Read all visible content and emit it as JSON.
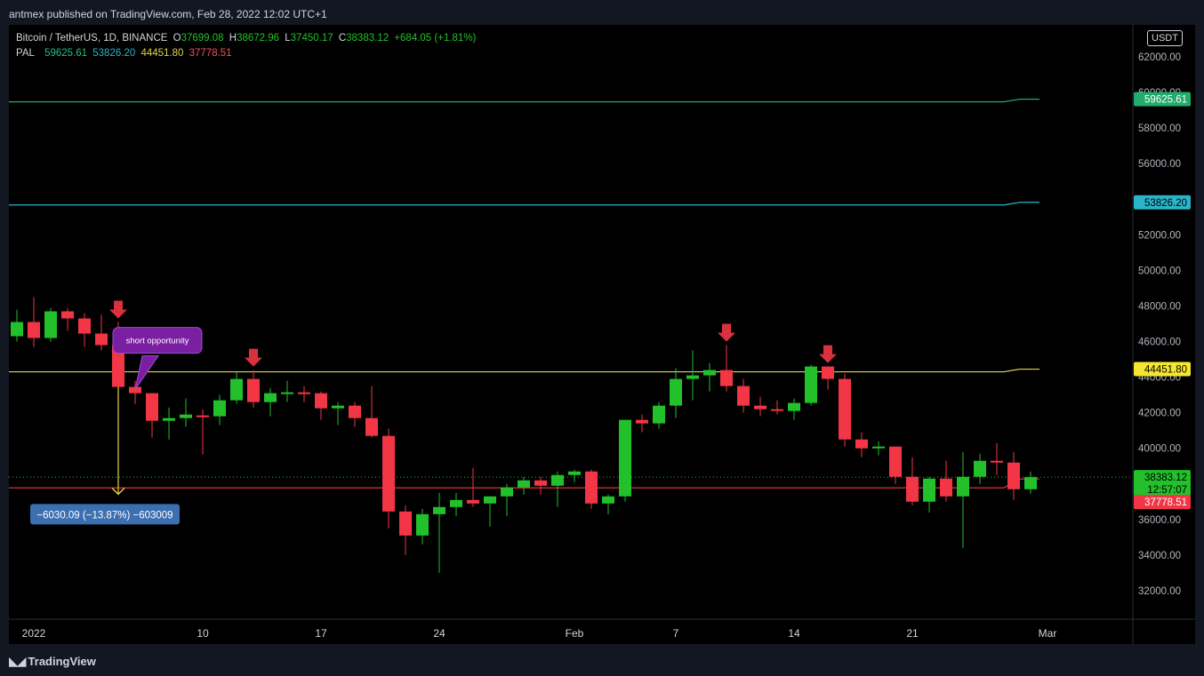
{
  "header": {
    "published": "antmex published on TradingView.com, Feb 28, 2022 12:02 UTC+1"
  },
  "legend": {
    "symbol": "Bitcoin / TetherUS, 1D, BINANCE",
    "open_label": "O",
    "open": "37699.08",
    "high_label": "H",
    "high": "38672.96",
    "low_label": "L",
    "low": "37450.17",
    "close_label": "C",
    "close": "38383.12",
    "change": "+684.05 (+1.81%)",
    "indicator": "PAL",
    "pal_values": [
      "59625.61",
      "53826.20",
      "44451.80",
      "37778.51"
    ]
  },
  "colors": {
    "up": "#22c02a",
    "down": "#f23645",
    "pal1": "#22ab6b",
    "pal2": "#2ab4c9",
    "pal3": "#e0d44a",
    "pal4": "#f23645",
    "annotation": "#7b1fa2",
    "measure": "#3c6fb0",
    "arrow": "#e0d44a"
  },
  "currency_badge": "USDT",
  "footer": {
    "brand": "TradingView",
    "logo_icon": "tradingview-logo-icon"
  },
  "chart_data": {
    "type": "candlestick",
    "y_axis_ticks": [
      32000,
      34000,
      36000,
      38000,
      40000,
      42000,
      44000,
      46000,
      48000,
      50000,
      52000,
      54000,
      56000,
      58000,
      60000,
      62000
    ],
    "y_axis_tick_labels": [
      "32000.00",
      "34000.00",
      "36000.00",
      "38000.00",
      "40000.00",
      "42000.00",
      "44000.00",
      "46000.00",
      "48000.00",
      "50000.00",
      "52000.00",
      "54000.00",
      "56000.00",
      "58000.00",
      "60000.00",
      "62000.00"
    ],
    "ylim": [
      30400,
      63800
    ],
    "x_axis_labels": [
      {
        "date": "2021-12-31",
        "label": "2022"
      },
      {
        "date": "2022-01-10",
        "label": "10"
      },
      {
        "date": "2022-01-17",
        "label": "17"
      },
      {
        "date": "2022-01-24",
        "label": "24"
      },
      {
        "date": "2022-02-01",
        "label": "Feb"
      },
      {
        "date": "2022-02-07",
        "label": "7"
      },
      {
        "date": "2022-02-14",
        "label": "14"
      },
      {
        "date": "2022-02-21",
        "label": "21"
      },
      {
        "date": "2022-03-01",
        "label": "Mar"
      }
    ],
    "xlim": [
      "2021-12-30",
      "2022-03-04"
    ],
    "candles": [
      {
        "date": "2021-12-30",
        "o": 46300,
        "h": 47800,
        "l": 46000,
        "c": 47100
      },
      {
        "date": "2021-12-31",
        "o": 47100,
        "h": 48500,
        "l": 45700,
        "c": 46200
      },
      {
        "date": "2022-01-01",
        "o": 46200,
        "h": 47900,
        "l": 46000,
        "c": 47700
      },
      {
        "date": "2022-01-02",
        "o": 47700,
        "h": 47900,
        "l": 46600,
        "c": 47300
      },
      {
        "date": "2022-01-03",
        "o": 47300,
        "h": 47600,
        "l": 45700,
        "c": 46450
      },
      {
        "date": "2022-01-04",
        "o": 46450,
        "h": 47500,
        "l": 45500,
        "c": 45800
      },
      {
        "date": "2022-01-05",
        "o": 45800,
        "h": 47100,
        "l": 42500,
        "c": 43450
      },
      {
        "date": "2022-01-06",
        "o": 43450,
        "h": 43800,
        "l": 42500,
        "c": 43100
      },
      {
        "date": "2022-01-07",
        "o": 43100,
        "h": 43100,
        "l": 40600,
        "c": 41550
      },
      {
        "date": "2022-01-08",
        "o": 41550,
        "h": 42300,
        "l": 40500,
        "c": 41700
      },
      {
        "date": "2022-01-09",
        "o": 41700,
        "h": 42800,
        "l": 41200,
        "c": 41900
      },
      {
        "date": "2022-01-10",
        "o": 41850,
        "h": 42200,
        "l": 39650,
        "c": 41800
      },
      {
        "date": "2022-01-11",
        "o": 41800,
        "h": 43000,
        "l": 41300,
        "c": 42700
      },
      {
        "date": "2022-01-12",
        "o": 42700,
        "h": 44300,
        "l": 42500,
        "c": 43900
      },
      {
        "date": "2022-01-13",
        "o": 43900,
        "h": 44400,
        "l": 42300,
        "c": 42600
      },
      {
        "date": "2022-01-14",
        "o": 42600,
        "h": 43400,
        "l": 41800,
        "c": 43100
      },
      {
        "date": "2022-01-15",
        "o": 43100,
        "h": 43800,
        "l": 42600,
        "c": 43150
      },
      {
        "date": "2022-01-16",
        "o": 43150,
        "h": 43500,
        "l": 42600,
        "c": 43100
      },
      {
        "date": "2022-01-17",
        "o": 43100,
        "h": 43200,
        "l": 41600,
        "c": 42250
      },
      {
        "date": "2022-01-18",
        "o": 42250,
        "h": 42600,
        "l": 41300,
        "c": 42400
      },
      {
        "date": "2022-01-19",
        "o": 42400,
        "h": 42600,
        "l": 41200,
        "c": 41700
      },
      {
        "date": "2022-01-20",
        "o": 41700,
        "h": 43500,
        "l": 40600,
        "c": 40700
      },
      {
        "date": "2022-01-21",
        "o": 40700,
        "h": 41100,
        "l": 35500,
        "c": 36450
      },
      {
        "date": "2022-01-22",
        "o": 36450,
        "h": 36800,
        "l": 34000,
        "c": 35100
      },
      {
        "date": "2022-01-23",
        "o": 35100,
        "h": 36600,
        "l": 34600,
        "c": 36300
      },
      {
        "date": "2022-01-24",
        "o": 36300,
        "h": 37500,
        "l": 33000,
        "c": 36700
      },
      {
        "date": "2022-01-25",
        "o": 36700,
        "h": 37500,
        "l": 36200,
        "c": 37100
      },
      {
        "date": "2022-01-26",
        "o": 37100,
        "h": 38900,
        "l": 36700,
        "c": 36900
      },
      {
        "date": "2022-01-27",
        "o": 36900,
        "h": 37300,
        "l": 35600,
        "c": 37300
      },
      {
        "date": "2022-01-28",
        "o": 37300,
        "h": 38000,
        "l": 36200,
        "c": 37800
      },
      {
        "date": "2022-01-29",
        "o": 37800,
        "h": 38400,
        "l": 37400,
        "c": 38200
      },
      {
        "date": "2022-01-30",
        "o": 38200,
        "h": 38400,
        "l": 37400,
        "c": 37900
      },
      {
        "date": "2022-01-31",
        "o": 37900,
        "h": 38700,
        "l": 36700,
        "c": 38500
      },
      {
        "date": "2022-02-01",
        "o": 38500,
        "h": 38800,
        "l": 38100,
        "c": 38700
      },
      {
        "date": "2022-02-02",
        "o": 38700,
        "h": 38800,
        "l": 36600,
        "c": 36900
      },
      {
        "date": "2022-02-03",
        "o": 36900,
        "h": 37400,
        "l": 36300,
        "c": 37300
      },
      {
        "date": "2022-02-04",
        "o": 37300,
        "h": 41600,
        "l": 37000,
        "c": 41600
      },
      {
        "date": "2022-02-05",
        "o": 41600,
        "h": 41900,
        "l": 40900,
        "c": 41400
      },
      {
        "date": "2022-02-06",
        "o": 41400,
        "h": 42600,
        "l": 41100,
        "c": 42400
      },
      {
        "date": "2022-02-07",
        "o": 42400,
        "h": 44500,
        "l": 41700,
        "c": 43900
      },
      {
        "date": "2022-02-08",
        "o": 43900,
        "h": 45500,
        "l": 42700,
        "c": 44100
      },
      {
        "date": "2022-02-09",
        "o": 44100,
        "h": 44800,
        "l": 43200,
        "c": 44400
      },
      {
        "date": "2022-02-10",
        "o": 44400,
        "h": 45800,
        "l": 43200,
        "c": 43500
      },
      {
        "date": "2022-02-11",
        "o": 43500,
        "h": 43900,
        "l": 42000,
        "c": 42400
      },
      {
        "date": "2022-02-12",
        "o": 42400,
        "h": 42900,
        "l": 41800,
        "c": 42200
      },
      {
        "date": "2022-02-13",
        "o": 42200,
        "h": 42700,
        "l": 41900,
        "c": 42100
      },
      {
        "date": "2022-02-14",
        "o": 42100,
        "h": 42800,
        "l": 41600,
        "c": 42550
      },
      {
        "date": "2022-02-15",
        "o": 42550,
        "h": 44700,
        "l": 42400,
        "c": 44600
      },
      {
        "date": "2022-02-16",
        "o": 44600,
        "h": 44600,
        "l": 43300,
        "c": 43900
      },
      {
        "date": "2022-02-17",
        "o": 43900,
        "h": 44200,
        "l": 40100,
        "c": 40500
      },
      {
        "date": "2022-02-18",
        "o": 40500,
        "h": 40900,
        "l": 39500,
        "c": 40000
      },
      {
        "date": "2022-02-19",
        "o": 40000,
        "h": 40400,
        "l": 39600,
        "c": 40100
      },
      {
        "date": "2022-02-20",
        "o": 40100,
        "h": 40100,
        "l": 38000,
        "c": 38400
      },
      {
        "date": "2022-02-21",
        "o": 38400,
        "h": 39500,
        "l": 36800,
        "c": 37000
      },
      {
        "date": "2022-02-22",
        "o": 37000,
        "h": 38400,
        "l": 36400,
        "c": 38300
      },
      {
        "date": "2022-02-23",
        "o": 38300,
        "h": 39300,
        "l": 37000,
        "c": 37300
      },
      {
        "date": "2022-02-24",
        "o": 37300,
        "h": 39800,
        "l": 34400,
        "c": 38400
      },
      {
        "date": "2022-02-25",
        "o": 38400,
        "h": 39700,
        "l": 38000,
        "c": 39300
      },
      {
        "date": "2022-02-26",
        "o": 39300,
        "h": 40300,
        "l": 38500,
        "c": 39200
      },
      {
        "date": "2022-02-27",
        "o": 39200,
        "h": 39800,
        "l": 37100,
        "c": 37700
      },
      {
        "date": "2022-02-28",
        "o": 37700,
        "h": 38700,
        "l": 37450,
        "c": 38383
      }
    ],
    "pal_lines": [
      {
        "name": "PAL",
        "level": 59625.61,
        "label": "59625.61",
        "color_key": "pal1"
      },
      {
        "name": "PAL",
        "level": 53826.2,
        "label": "53826.20",
        "color_key": "pal2"
      },
      {
        "name": "PAL",
        "level": 44451.8,
        "label": "44451.80",
        "color_key": "pal3"
      },
      {
        "name": "PAL",
        "level": 37778.51,
        "label": "37778.51",
        "color_key": "pal4"
      }
    ],
    "current_price": {
      "value": 38383.12,
      "label": "38383.12",
      "countdown": "12:57:07"
    },
    "signal_arrows": [
      "2022-01-05",
      "2022-01-13",
      "2022-02-10",
      "2022-02-16"
    ],
    "annotation": {
      "text": "short opportunity",
      "anchor_date": "2022-01-06",
      "anchor_price": 43300
    },
    "measure": {
      "from_date": "2022-01-05",
      "from_price": 43450,
      "to_price": 37420,
      "label": "−6030.09 (−13.87%) −603009"
    }
  }
}
